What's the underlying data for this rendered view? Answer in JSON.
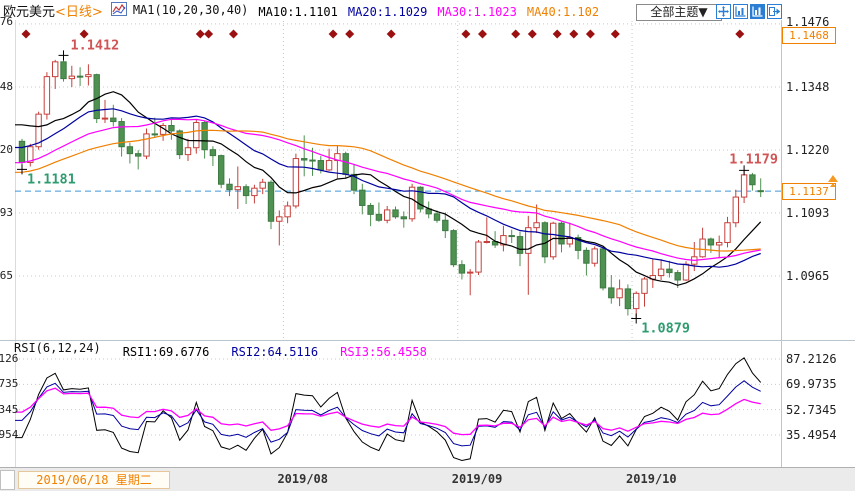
{
  "header": {
    "symbol": "欧元美元",
    "period": "<日线>",
    "ma_group_label": "MA1(10,20,30,40)",
    "ma_items": [
      {
        "label": "MA10:1.1101",
        "color": "#000000"
      },
      {
        "label": "MA20:1.1029",
        "color": "#0000a0"
      },
      {
        "label": "MA30:1.1023",
        "color": "#ff00ff"
      },
      {
        "label": "MA40:1.102",
        "color": "#f08000"
      }
    ],
    "theme_dropdown_label": "全部主题",
    "theme_dropdown_arrow": "▼"
  },
  "rsi_header": {
    "group_label": "RSI(6,12,24)",
    "items": [
      {
        "label": "RSI1:69.6776",
        "color": "#000000"
      },
      {
        "label": "RSI2:64.5116",
        "color": "#0000a0"
      },
      {
        "label": "RSI3:56.4558",
        "color": "#ff00ff"
      }
    ]
  },
  "x_axis": {
    "date_box": "2019/06/18 星期二",
    "month_labels": [
      "2019/08",
      "2019/09",
      "2019/10"
    ]
  },
  "colors": {
    "up": "#c6403c",
    "down": "#4e9150",
    "down_stroke": "#3d7a44",
    "grid": "#c9c9c9",
    "dashed_line": "#3f97d9",
    "diamond": "#9b1111",
    "accent_orange": "#f08000",
    "frame": "#b9c6cf"
  },
  "chart_data": {
    "type": "candlestick",
    "title": "欧元美元 日线 EUR/USD Daily",
    "legend_position": "top",
    "grid": true,
    "price_axis_labels": [
      "1.1476",
      "1.1348",
      "1.1220",
      "1.1093",
      "1.0965"
    ],
    "price_axis_values": [
      1.1476,
      1.1348,
      1.122,
      1.1093,
      1.0965
    ],
    "current_price": {
      "label": "1.1137",
      "value": 1.1137
    },
    "alert_level": {
      "label": "1.1468",
      "value": 1.1468
    },
    "annotations": [
      {
        "text": "1.1412",
        "type": "high",
        "candle_index": 5,
        "price": 1.1412,
        "color": "#d15454"
      },
      {
        "text": "1.1181",
        "type": "low",
        "candle_index": 0,
        "price": 1.1181,
        "color": "#2f9c70"
      },
      {
        "text": "1.0879",
        "type": "low",
        "candle_index": 74,
        "price": 1.0879,
        "color": "#2f9c70"
      },
      {
        "text": "1.1179",
        "type": "high",
        "candle_index": 87,
        "price": 1.1179,
        "color": "#d15454"
      }
    ],
    "event_marker_indices": [
      0,
      7,
      21,
      22,
      25,
      37,
      39,
      44,
      53,
      55,
      59,
      61,
      64,
      66,
      68,
      71,
      86
    ],
    "month_boundaries": [
      {
        "label": "2019/08",
        "index": 31.5
      },
      {
        "label": "2019/09",
        "index": 52.5
      },
      {
        "label": "2019/10",
        "index": 73.5
      }
    ],
    "ma_periods": [
      10,
      20,
      30,
      40
    ],
    "ma_colors": [
      "#000000",
      "#0000a0",
      "#ff00ff",
      "#f08000"
    ],
    "rsi_periods": [
      6,
      12,
      24
    ],
    "rsi_colors": [
      "#000000",
      "#0000a0",
      "#ff00ff"
    ],
    "rsi_axis_labels": [
      "87.2126",
      "69.9735",
      "52.7345",
      "35.4954"
    ],
    "rsi_axis_values": [
      87.2126,
      69.9735,
      52.7345,
      35.4954
    ],
    "warmup_closes": [
      1.1121,
      1.1118,
      1.1125,
      1.113,
      1.1122,
      1.1117,
      1.111,
      1.1115,
      1.1121,
      1.1126,
      1.1119,
      1.1112,
      1.1107,
      1.1118,
      1.1125,
      1.1131,
      1.1138,
      1.1128,
      1.1122,
      1.1116,
      1.1121,
      1.1135,
      1.1151,
      1.1162,
      1.1151,
      1.1182,
      1.1202,
      1.1193,
      1.1167,
      1.1134,
      1.1128,
      1.1168,
      1.1218,
      1.1253,
      1.1249,
      1.1307,
      1.1334,
      1.1312,
      1.1326,
      1.1288,
      1.1277,
      1.1207,
      1.1219
    ],
    "candles": [
      [
        1.1238,
        1.1243,
        1.1181,
        1.1195
      ],
      [
        1.1195,
        1.1233,
        1.1187,
        1.1227
      ],
      [
        1.1227,
        1.1298,
        1.1221,
        1.1293
      ],
      [
        1.1293,
        1.1378,
        1.1282,
        1.1369
      ],
      [
        1.1369,
        1.1403,
        1.1344,
        1.1399
      ],
      [
        1.1399,
        1.1412,
        1.1359,
        1.1365
      ],
      [
        1.1365,
        1.1391,
        1.1348,
        1.137
      ],
      [
        1.137,
        1.1388,
        1.135,
        1.1369
      ],
      [
        1.1369,
        1.1394,
        1.1351,
        1.1373
      ],
      [
        1.1373,
        1.1375,
        1.1275,
        1.1284
      ],
      [
        1.1284,
        1.1322,
        1.1275,
        1.1285
      ],
      [
        1.1285,
        1.1312,
        1.1268,
        1.1278
      ],
      [
        1.1278,
        1.1285,
        1.1207,
        1.1227
      ],
      [
        1.1227,
        1.1235,
        1.1193,
        1.1213
      ],
      [
        1.1213,
        1.122,
        1.1181,
        1.1208
      ],
      [
        1.1208,
        1.1264,
        1.1202,
        1.1253
      ],
      [
        1.1253,
        1.1286,
        1.1245,
        1.1252
      ],
      [
        1.1252,
        1.1275,
        1.1239,
        1.127
      ],
      [
        1.127,
        1.1283,
        1.1241,
        1.1259
      ],
      [
        1.1259,
        1.1262,
        1.1202,
        1.1211
      ],
      [
        1.1211,
        1.1243,
        1.1198,
        1.1225
      ],
      [
        1.1225,
        1.1282,
        1.1213,
        1.1276
      ],
      [
        1.1276,
        1.128,
        1.1203,
        1.1221
      ],
      [
        1.1221,
        1.1228,
        1.1188,
        1.1209
      ],
      [
        1.1209,
        1.1211,
        1.1143,
        1.1151
      ],
      [
        1.1151,
        1.1163,
        1.1127,
        1.114
      ],
      [
        1.114,
        1.1187,
        1.1101,
        1.1146
      ],
      [
        1.1146,
        1.1151,
        1.1111,
        1.1128
      ],
      [
        1.1128,
        1.115,
        1.1112,
        1.1143
      ],
      [
        1.1143,
        1.1162,
        1.1131,
        1.1155
      ],
      [
        1.1155,
        1.1159,
        1.106,
        1.1076
      ],
      [
        1.1076,
        1.1098,
        1.1027,
        1.1085
      ],
      [
        1.1085,
        1.1116,
        1.1072,
        1.1107
      ],
      [
        1.1107,
        1.1213,
        1.1102,
        1.1203
      ],
      [
        1.1203,
        1.125,
        1.1167,
        1.12
      ],
      [
        1.12,
        1.1225,
        1.1168,
        1.1199
      ],
      [
        1.1199,
        1.1208,
        1.1173,
        1.118
      ],
      [
        1.118,
        1.1223,
        1.1178,
        1.1199
      ],
      [
        1.1199,
        1.123,
        1.1163,
        1.1213
      ],
      [
        1.1213,
        1.1217,
        1.1162,
        1.1171
      ],
      [
        1.1171,
        1.1192,
        1.1131,
        1.1139
      ],
      [
        1.1139,
        1.1152,
        1.109,
        1.1108
      ],
      [
        1.1108,
        1.1113,
        1.1066,
        1.109
      ],
      [
        1.109,
        1.1114,
        1.1075,
        1.1078
      ],
      [
        1.1078,
        1.1107,
        1.1072,
        1.1099
      ],
      [
        1.1099,
        1.1106,
        1.1081,
        1.1085
      ],
      [
        1.1085,
        1.1096,
        1.1063,
        1.1081
      ],
      [
        1.1081,
        1.1152,
        1.1075,
        1.1145
      ],
      [
        1.1145,
        1.1147,
        1.1094,
        1.1101
      ],
      [
        1.1101,
        1.1116,
        1.1082,
        1.1091
      ],
      [
        1.1091,
        1.1098,
        1.1073,
        1.1078
      ],
      [
        1.1078,
        1.1094,
        1.1042,
        1.1057
      ],
      [
        1.1057,
        1.106,
        1.0983,
        1.0988
      ],
      [
        1.0988,
        1.0997,
        1.0958,
        1.0971
      ],
      [
        1.0971,
        1.0979,
        1.0926,
        1.0973
      ],
      [
        1.0973,
        1.1038,
        1.0967,
        1.1034
      ],
      [
        1.1034,
        1.1084,
        1.1031,
        1.1035
      ],
      [
        1.1035,
        1.1056,
        1.1022,
        1.1028
      ],
      [
        1.1028,
        1.1067,
        1.1015,
        1.1047
      ],
      [
        1.1047,
        1.1059,
        1.1032,
        1.1045
      ],
      [
        1.1045,
        1.1055,
        1.0985,
        1.1011
      ],
      [
        1.1011,
        1.1087,
        1.0927,
        1.1063
      ],
      [
        1.1063,
        1.111,
        1.1052,
        1.1073
      ],
      [
        1.1073,
        1.1076,
        1.0991,
        1.1004
      ],
      [
        1.1004,
        1.1075,
        1.0998,
        1.1072
      ],
      [
        1.1072,
        1.1075,
        1.1013,
        1.103
      ],
      [
        1.103,
        1.1073,
        1.1023,
        1.1043
      ],
      [
        1.1043,
        1.1049,
        1.0999,
        1.1017
      ],
      [
        1.1017,
        1.1023,
        1.0966,
        1.0991
      ],
      [
        1.0991,
        1.1025,
        1.0984,
        1.102
      ],
      [
        1.102,
        1.1024,
        1.0936,
        1.0941
      ],
      [
        1.0941,
        1.0967,
        1.0909,
        1.0921
      ],
      [
        1.0921,
        1.0958,
        1.0904,
        1.0939
      ],
      [
        1.0939,
        1.0948,
        1.0885,
        1.0899
      ],
      [
        1.0899,
        1.0934,
        1.0879,
        1.093
      ],
      [
        1.093,
        1.0963,
        1.0903,
        1.0959
      ],
      [
        1.0959,
        1.0999,
        1.0941,
        1.0966
      ],
      [
        1.0966,
        1.0999,
        1.0957,
        1.0979
      ],
      [
        1.0979,
        1.0996,
        1.0962,
        1.0972
      ],
      [
        1.0972,
        1.0977,
        1.0941,
        1.0957
      ],
      [
        1.0957,
        1.0995,
        1.0955,
        1.0989
      ],
      [
        1.0989,
        1.1034,
        1.0975,
        1.1004
      ],
      [
        1.1004,
        1.1063,
        1.1002,
        1.104
      ],
      [
        1.104,
        1.1043,
        1.1012,
        1.1028
      ],
      [
        1.1028,
        1.1047,
        1.1001,
        1.1033
      ],
      [
        1.1033,
        1.1085,
        1.1023,
        1.1073
      ],
      [
        1.1073,
        1.114,
        1.1064,
        1.1125
      ],
      [
        1.1125,
        1.1179,
        1.1113,
        1.117
      ],
      [
        1.117,
        1.1174,
        1.1138,
        1.115
      ],
      [
        1.1138,
        1.1163,
        1.1125,
        1.1137
      ]
    ]
  }
}
